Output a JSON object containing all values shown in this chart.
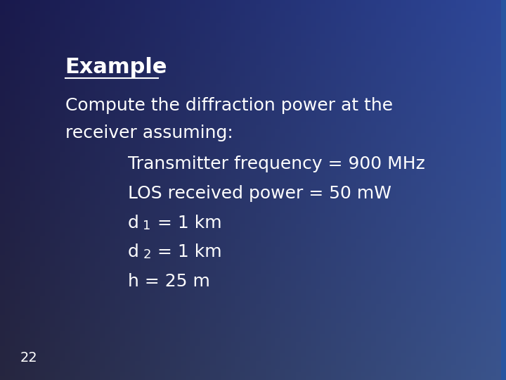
{
  "title": "Example",
  "line1": "Compute the diffraction power at the",
  "line2": "receiver assuming:",
  "bullet1": "Transmitter frequency = 900 MHz",
  "bullet2": "LOS received power = 50 mW",
  "bullet3_d": "d",
  "bullet3_sub": "1",
  "bullet3_rest": " = 1 km",
  "bullet4_d": "d",
  "bullet4_sub": "2",
  "bullet4_rest": " = 1 km",
  "bullet5": "h = 25 m",
  "page_num": "22",
  "text_color": "#ffffff",
  "title_fontsize": 22,
  "body_fontsize": 18,
  "indent_fontsize": 18,
  "page_fontsize": 14
}
